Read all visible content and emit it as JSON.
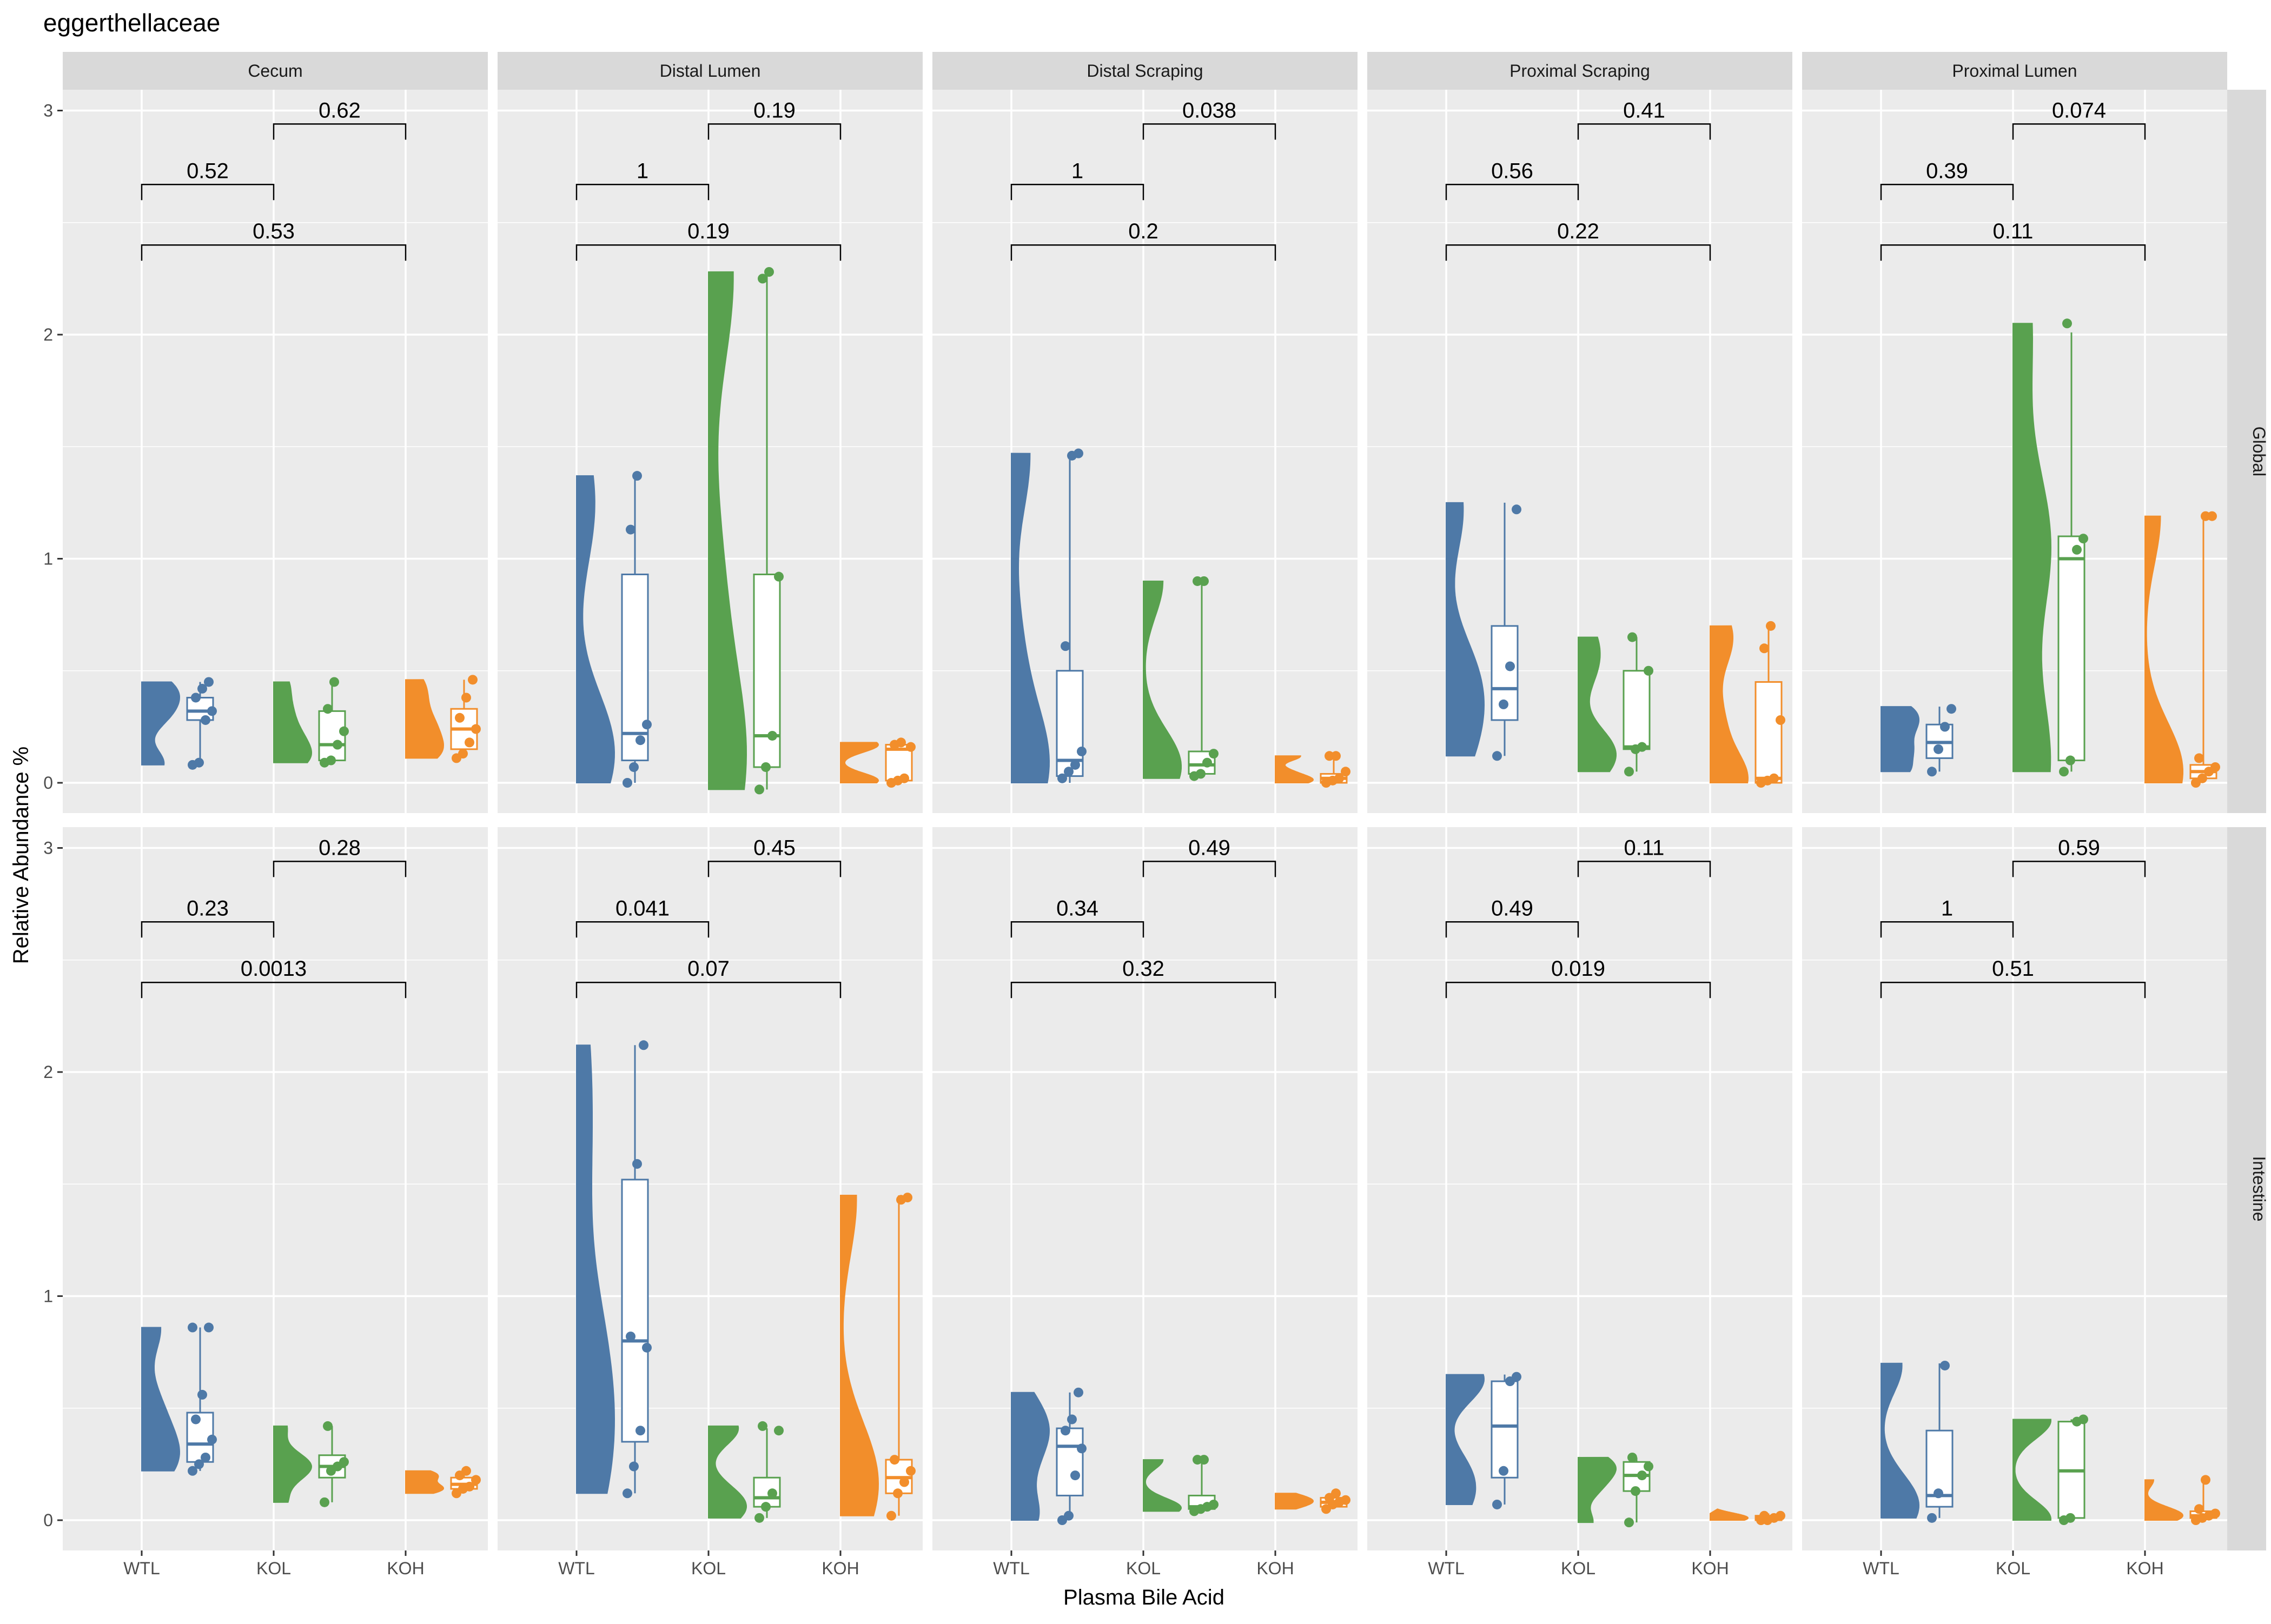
{
  "chart_data": {
    "type": "raincloud",
    "title": "eggerthellaceae",
    "xlabel": "Plasma Bile Acid",
    "ylabel": "Relative Abundance %",
    "ylim": [
      -0.15,
      3.1
    ],
    "y_ticks": [
      "0",
      "1",
      "2",
      "3"
    ],
    "categories": [
      "WTL",
      "KOL",
      "KOH"
    ],
    "colors": {
      "WTL": "#4e79a7",
      "KOL": "#59a14f",
      "KOH": "#f28e2b"
    },
    "panel_background": "#ebebeb",
    "strip_background": "#d9d9d9",
    "grid": true,
    "column_facets": [
      "Cecum",
      "Distal Lumen",
      "Distal Scraping",
      "Proximal Scraping",
      "Proximal Lumen"
    ],
    "row_facets": [
      "Global",
      "Intestine"
    ],
    "panels": [
      {
        "row": "Global",
        "column": "Cecum",
        "p_values": {
          "WTL_KOL": "0.52",
          "KOL_KOH": "0.62",
          "WTL_KOH": "0.53"
        },
        "groups": [
          {
            "group": "WTL",
            "min": 0.08,
            "q1": 0.28,
            "median": 0.32,
            "q3": 0.38,
            "max": 0.45,
            "points": [
              0.08,
              0.09,
              0.28,
              0.32,
              0.38,
              0.42,
              0.45
            ]
          },
          {
            "group": "KOL",
            "min": 0.09,
            "q1": 0.1,
            "median": 0.17,
            "q3": 0.32,
            "max": 0.45,
            "points": [
              0.09,
              0.1,
              0.17,
              0.23,
              0.33,
              0.45
            ]
          },
          {
            "group": "KOH",
            "min": 0.11,
            "q1": 0.15,
            "median": 0.24,
            "q3": 0.33,
            "max": 0.46,
            "points": [
              0.11,
              0.13,
              0.18,
              0.24,
              0.29,
              0.38,
              0.46
            ]
          }
        ]
      },
      {
        "row": "Global",
        "column": "Distal Lumen",
        "p_values": {
          "WTL_KOL": "1",
          "KOL_KOH": "0.19",
          "WTL_KOH": "0.19"
        },
        "groups": [
          {
            "group": "WTL",
            "min": 0.0,
            "q1": 0.1,
            "median": 0.22,
            "q3": 0.93,
            "max": 1.37,
            "points": [
              0.0,
              0.07,
              0.19,
              0.26,
              1.13,
              1.37
            ]
          },
          {
            "group": "KOL",
            "min": -0.03,
            "q1": 0.07,
            "median": 0.21,
            "q3": 0.93,
            "max": 2.28,
            "points": [
              -0.03,
              0.07,
              0.21,
              0.92,
              2.25,
              2.28
            ]
          },
          {
            "group": "KOH",
            "min": 0.0,
            "q1": 0.01,
            "median": 0.15,
            "q3": 0.17,
            "max": 0.18,
            "points": [
              0.0,
              0.01,
              0.02,
              0.16,
              0.17,
              0.18
            ]
          }
        ]
      },
      {
        "row": "Global",
        "column": "Distal Scraping",
        "p_values": {
          "WTL_KOL": "1",
          "KOL_KOH": "0.038",
          "WTL_KOH": "0.2"
        },
        "groups": [
          {
            "group": "WTL",
            "min": 0.0,
            "q1": 0.03,
            "median": 0.1,
            "q3": 0.5,
            "max": 1.46,
            "points": [
              0.02,
              0.05,
              0.08,
              0.14,
              0.61,
              1.46,
              1.47
            ]
          },
          {
            "group": "KOL",
            "min": 0.02,
            "q1": 0.04,
            "median": 0.08,
            "q3": 0.14,
            "max": 0.9,
            "points": [
              0.03,
              0.04,
              0.09,
              0.13,
              0.9,
              0.9
            ]
          },
          {
            "group": "KOH",
            "min": 0.0,
            "q1": 0.0,
            "median": 0.02,
            "q3": 0.04,
            "max": 0.12,
            "points": [
              0.0,
              0.01,
              0.02,
              0.05,
              0.12,
              0.12
            ]
          }
        ]
      },
      {
        "row": "Global",
        "column": "Proximal Scraping",
        "p_values": {
          "WTL_KOL": "0.56",
          "KOL_KOH": "0.41",
          "WTL_KOH": "0.22"
        },
        "groups": [
          {
            "group": "WTL",
            "min": 0.12,
            "q1": 0.28,
            "median": 0.42,
            "q3": 0.7,
            "max": 1.25,
            "points": [
              0.12,
              0.35,
              0.52,
              1.22
            ]
          },
          {
            "group": "KOL",
            "min": 0.05,
            "q1": 0.15,
            "median": 0.16,
            "q3": 0.5,
            "max": 0.65,
            "points": [
              0.05,
              0.15,
              0.16,
              0.5,
              0.65
            ]
          },
          {
            "group": "KOH",
            "min": 0.0,
            "q1": 0.0,
            "median": 0.02,
            "q3": 0.45,
            "max": 0.7,
            "points": [
              0.0,
              0.01,
              0.02,
              0.28,
              0.6,
              0.7
            ]
          }
        ]
      },
      {
        "row": "Global",
        "column": "Proximal Lumen",
        "p_values": {
          "WTL_KOL": "0.39",
          "KOL_KOH": "0.074",
          "WTL_KOH": "0.11"
        },
        "groups": [
          {
            "group": "WTL",
            "min": 0.05,
            "q1": 0.11,
            "median": 0.18,
            "q3": 0.26,
            "max": 0.34,
            "points": [
              0.05,
              0.15,
              0.25,
              0.33
            ]
          },
          {
            "group": "KOL",
            "min": 0.05,
            "q1": 0.1,
            "median": 1.0,
            "q3": 1.1,
            "max": 2.01,
            "points": [
              0.05,
              0.1,
              1.04,
              1.09,
              2.05
            ]
          },
          {
            "group": "KOH",
            "min": 0.0,
            "q1": 0.02,
            "median": 0.05,
            "q3": 0.08,
            "max": 1.19,
            "points": [
              0.0,
              0.02,
              0.05,
              0.07,
              0.11,
              1.19,
              1.19
            ]
          }
        ]
      },
      {
        "row": "Intestine",
        "column": "Cecum",
        "p_values": {
          "WTL_KOL": "0.23",
          "KOL_KOH": "0.28",
          "WTL_KOH": "0.0013"
        },
        "groups": [
          {
            "group": "WTL",
            "min": 0.22,
            "q1": 0.26,
            "median": 0.34,
            "q3": 0.48,
            "max": 0.86,
            "points": [
              0.22,
              0.25,
              0.28,
              0.36,
              0.45,
              0.56,
              0.86,
              0.86
            ]
          },
          {
            "group": "KOL",
            "min": 0.08,
            "q1": 0.19,
            "median": 0.24,
            "q3": 0.29,
            "max": 0.42,
            "points": [
              0.08,
              0.22,
              0.24,
              0.26,
              0.42
            ]
          },
          {
            "group": "KOH",
            "min": 0.12,
            "q1": 0.14,
            "median": 0.16,
            "q3": 0.19,
            "max": 0.22,
            "points": [
              0.12,
              0.14,
              0.15,
              0.18,
              0.2,
              0.22
            ]
          }
        ]
      },
      {
        "row": "Intestine",
        "column": "Distal Lumen",
        "p_values": {
          "WTL_KOL": "0.041",
          "KOL_KOH": "0.45",
          "WTL_KOH": "0.07"
        },
        "groups": [
          {
            "group": "WTL",
            "min": 0.12,
            "q1": 0.35,
            "median": 0.8,
            "q3": 1.52,
            "max": 2.12,
            "points": [
              0.12,
              0.24,
              0.4,
              0.77,
              0.82,
              1.59,
              2.12
            ]
          },
          {
            "group": "KOL",
            "min": 0.01,
            "q1": 0.06,
            "median": 0.1,
            "q3": 0.19,
            "max": 0.41,
            "points": [
              0.01,
              0.06,
              0.12,
              0.4,
              0.42
            ]
          },
          {
            "group": "KOH",
            "min": 0.02,
            "q1": 0.12,
            "median": 0.19,
            "q3": 0.27,
            "max": 1.45,
            "points": [
              0.02,
              0.12,
              0.17,
              0.22,
              0.27,
              1.43,
              1.44
            ]
          }
        ]
      },
      {
        "row": "Intestine",
        "column": "Distal Scraping",
        "p_values": {
          "WTL_KOL": "0.34",
          "KOL_KOH": "0.49",
          "WTL_KOH": "0.32"
        },
        "groups": [
          {
            "group": "WTL",
            "min": 0.0,
            "q1": 0.11,
            "median": 0.33,
            "q3": 0.41,
            "max": 0.57,
            "points": [
              0.0,
              0.02,
              0.2,
              0.32,
              0.4,
              0.45,
              0.57
            ]
          },
          {
            "group": "KOL",
            "min": 0.04,
            "q1": 0.05,
            "median": 0.06,
            "q3": 0.11,
            "max": 0.27,
            "points": [
              0.04,
              0.05,
              0.06,
              0.07,
              0.27,
              0.27
            ]
          },
          {
            "group": "KOH",
            "min": 0.05,
            "q1": 0.06,
            "median": 0.08,
            "q3": 0.1,
            "max": 0.12,
            "points": [
              0.05,
              0.07,
              0.08,
              0.09,
              0.1,
              0.12
            ]
          }
        ]
      },
      {
        "row": "Intestine",
        "column": "Proximal Scraping",
        "p_values": {
          "WTL_KOL": "0.49",
          "KOL_KOH": "0.11",
          "WTL_KOH": "0.019"
        },
        "groups": [
          {
            "group": "WTL",
            "min": 0.07,
            "q1": 0.19,
            "median": 0.42,
            "q3": 0.62,
            "max": 0.65,
            "points": [
              0.07,
              0.22,
              0.62,
              0.64
            ]
          },
          {
            "group": "KOL",
            "min": -0.01,
            "q1": 0.13,
            "median": 0.2,
            "q3": 0.26,
            "max": 0.28,
            "points": [
              -0.01,
              0.13,
              0.2,
              0.24,
              0.28
            ]
          },
          {
            "group": "KOH",
            "min": 0.0,
            "q1": 0.0,
            "median": 0.01,
            "q3": 0.02,
            "max": 0.03,
            "points": [
              0.0,
              0.0,
              0.01,
              0.02,
              0.02
            ]
          }
        ]
      },
      {
        "row": "Intestine",
        "column": "Proximal Lumen",
        "p_values": {
          "WTL_KOL": "1",
          "KOL_KOH": "0.59",
          "WTL_KOH": "0.51"
        },
        "groups": [
          {
            "group": "WTL",
            "min": 0.01,
            "q1": 0.06,
            "median": 0.11,
            "q3": 0.4,
            "max": 0.7,
            "points": [
              0.01,
              0.12,
              0.69
            ]
          },
          {
            "group": "KOL",
            "min": 0.0,
            "q1": 0.01,
            "median": 0.22,
            "q3": 0.44,
            "max": 0.45,
            "points": [
              0.0,
              0.01,
              0.44,
              0.45
            ]
          },
          {
            "group": "KOH",
            "min": 0.0,
            "q1": 0.01,
            "median": 0.02,
            "q3": 0.04,
            "max": 0.18,
            "points": [
              0.0,
              0.01,
              0.02,
              0.03,
              0.05,
              0.18
            ]
          }
        ]
      }
    ]
  }
}
